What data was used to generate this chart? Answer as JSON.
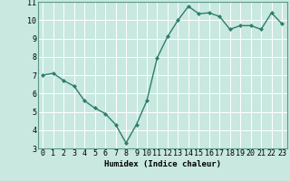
{
  "x": [
    0,
    1,
    2,
    3,
    4,
    5,
    6,
    7,
    8,
    9,
    10,
    11,
    12,
    13,
    14,
    15,
    16,
    17,
    18,
    19,
    20,
    21,
    22,
    23
  ],
  "y": [
    7.0,
    7.1,
    6.7,
    6.4,
    5.6,
    5.2,
    4.9,
    4.3,
    3.3,
    4.3,
    5.6,
    7.95,
    9.1,
    10.0,
    10.75,
    10.35,
    10.4,
    10.2,
    9.5,
    9.7,
    9.7,
    9.5,
    10.4,
    9.8
  ],
  "line_color": "#2e7d6e",
  "marker": "D",
  "marker_size": 2.0,
  "bg_color": "#c8e8e0",
  "grid_color": "#ffffff",
  "xlabel": "Humidex (Indice chaleur)",
  "ylim": [
    3,
    11
  ],
  "xlim_min": -0.5,
  "xlim_max": 23.5,
  "yticks": [
    3,
    4,
    5,
    6,
    7,
    8,
    9,
    10,
    11
  ],
  "xticks": [
    0,
    1,
    2,
    3,
    4,
    5,
    6,
    7,
    8,
    9,
    10,
    11,
    12,
    13,
    14,
    15,
    16,
    17,
    18,
    19,
    20,
    21,
    22,
    23
  ],
  "xlabel_fontsize": 6.5,
  "tick_fontsize": 6,
  "line_width": 1.0
}
